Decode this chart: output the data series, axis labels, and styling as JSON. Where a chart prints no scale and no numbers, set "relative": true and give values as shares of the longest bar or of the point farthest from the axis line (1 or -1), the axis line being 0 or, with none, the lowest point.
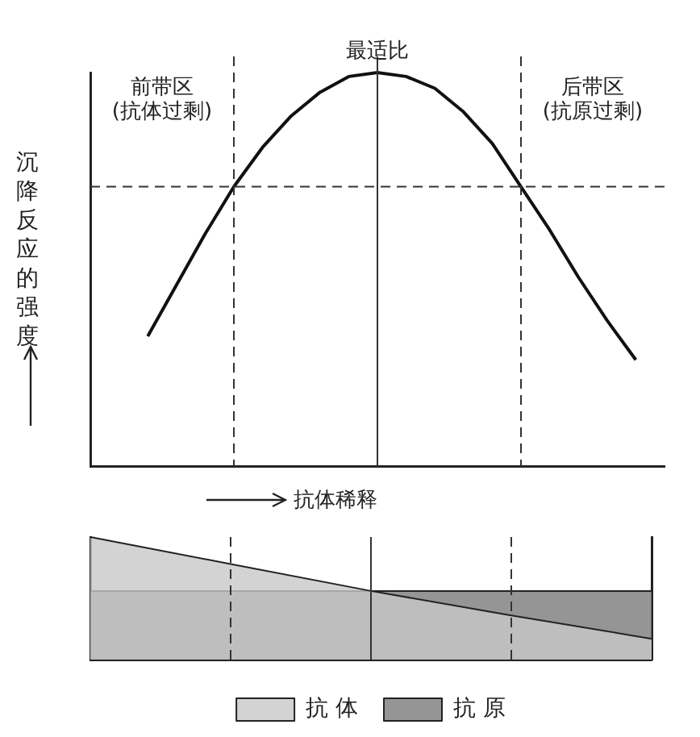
{
  "chart_data": [
    {
      "type": "line",
      "relative": true,
      "ylabel": "沉降反应的强度",
      "xlabel": "抗体稀释",
      "categories": [
        null,
        null,
        null,
        null,
        null,
        null,
        null,
        null,
        null,
        null,
        null,
        null,
        null,
        null,
        null,
        null,
        null,
        null,
        null,
        null,
        null
      ],
      "series": [
        {
          "color": "#111111",
          "values": [
            null,
            null,
            0.33,
            0.46,
            0.59,
            0.71,
            0.81,
            0.89,
            0.95,
            0.99,
            1,
            0.99,
            0.96,
            0.9,
            0.82,
            0.71,
            0.6,
            0.48,
            0.37,
            0.27,
            null
          ]
        }
      ],
      "annotations": [
        "前带区",
        "(抗体过剩)",
        "最适比",
        "后带区",
        "(抗原过剩)"
      ],
      "ref_lines": [
        {
          "axis": "y",
          "value": 0.71,
          "line_style": "dashed",
          "color": "#333333"
        }
      ],
      "marker": "none",
      "line_style": "solid"
    },
    {
      "type": "area",
      "relative": true,
      "legend": "bottom",
      "categories": [
        null,
        null,
        null,
        null,
        null
      ],
      "series": [
        {
          "name": "抗 体",
          "color": "#c8c8c8",
          "values": [
            1,
            0.78,
            0.56,
            0.36,
            0.17
          ]
        },
        {
          "name": "抗 原",
          "color": "#7a7a7a",
          "values": [
            0.56,
            0.56,
            0.56,
            0.56,
            0.56
          ]
        }
      ]
    }
  ]
}
